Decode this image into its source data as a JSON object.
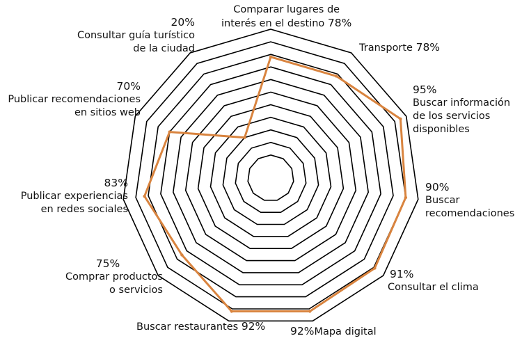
{
  "chart_data": {
    "type": "radar",
    "grid": true,
    "rmax": 100,
    "rings": 10,
    "line_color": "#D9843F",
    "grid_color": "#000000",
    "categories": [
      {
        "label": "Comparar lugares de interés en el destino",
        "lines": [
          "Comparar lugares de",
          "interés en el destino"
        ],
        "value": 78,
        "value_label": "78%"
      },
      {
        "label": "Transporte",
        "lines": [
          "Transporte"
        ],
        "value": 78,
        "value_label": "78%"
      },
      {
        "label": "Buscar información de los servicios disponibles",
        "lines": [
          "Buscar información",
          "de los servicios",
          "disponibles"
        ],
        "value": 95,
        "value_label": "95%"
      },
      {
        "label": "Buscar recomendaciones",
        "lines": [
          "Buscar",
          "recomendaciones"
        ],
        "value": 90,
        "value_label": "90%"
      },
      {
        "label": "Consultar el clima",
        "lines": [
          "Consultar el clima"
        ],
        "value": 91,
        "value_label": "91%"
      },
      {
        "label": "Mapa digital",
        "lines": [
          "Mapa digital"
        ],
        "value": 92,
        "value_label": "92%"
      },
      {
        "label": "Buscar restaurantes",
        "lines": [
          "Buscar restaurantes"
        ],
        "value": 92,
        "value_label": "92%"
      },
      {
        "label": "Comprar productos o servicios",
        "lines": [
          "Comprar productos",
          "o servicios"
        ],
        "value": 75,
        "value_label": "75%"
      },
      {
        "label": "Publicar experiencias en redes sociales",
        "lines": [
          "Publicar experiencias",
          "en redes sociales"
        ],
        "value": 83,
        "value_label": "83%"
      },
      {
        "label": "Publicar recomendaciones en sitios web",
        "lines": [
          "Publicar recomendaciones",
          "en sitios web"
        ],
        "value": 70,
        "value_label": "70%"
      },
      {
        "label": "Consultar guía turístico de la ciudad",
        "lines": [
          "Consultar guía turístico",
          "de la ciudad"
        ],
        "value": 20,
        "value_label": "20%"
      }
    ]
  }
}
